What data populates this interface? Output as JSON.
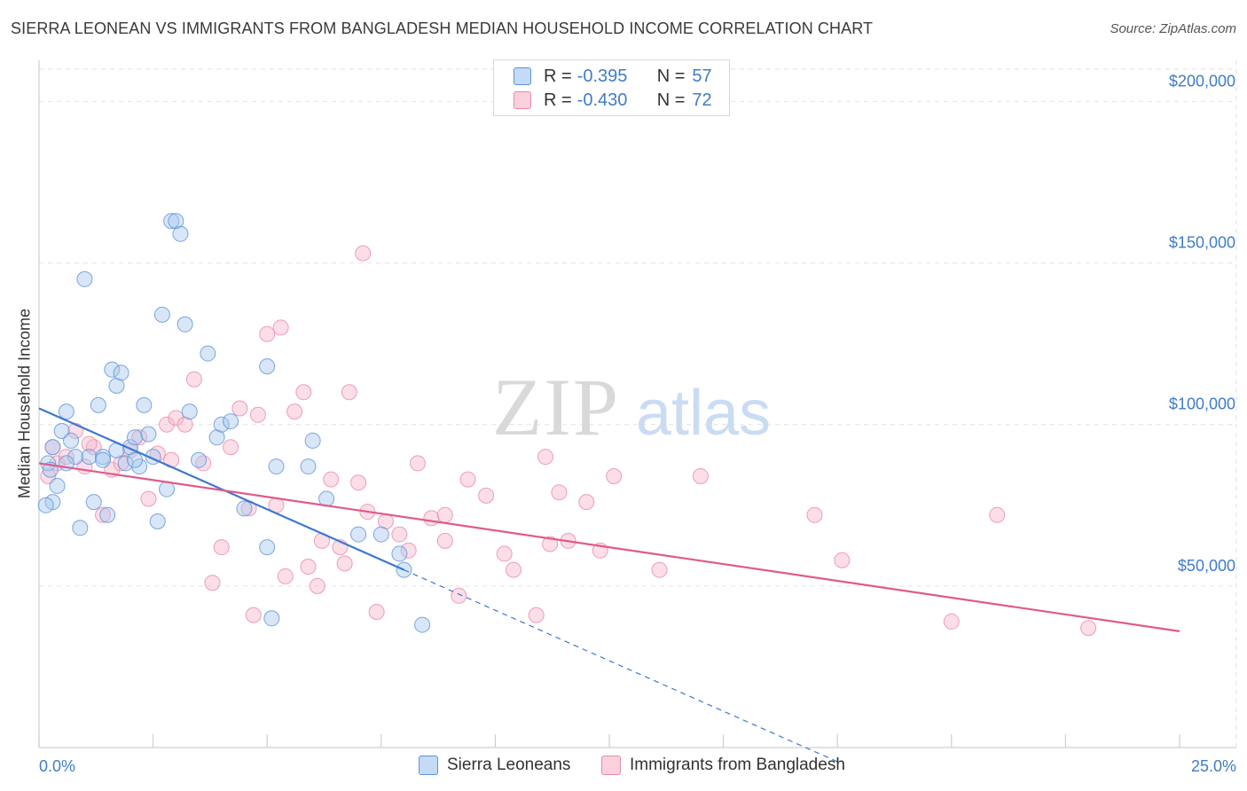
{
  "header": {
    "title": "SIERRA LEONEAN VS IMMIGRANTS FROM BANGLADESH MEDIAN HOUSEHOLD INCOME CORRELATION CHART",
    "source": "Source: ZipAtlas.com"
  },
  "watermark": {
    "zip": "ZIP",
    "atlas": "atlas"
  },
  "legend": {
    "rows": [
      {
        "r_label": "R =",
        "r_value": "-0.395",
        "n_label": "N =",
        "n_value": "57",
        "color": "#a8c8f0"
      },
      {
        "r_label": "R =",
        "r_value": "-0.430",
        "n_label": "N =",
        "n_value": "72",
        "color": "#f6b6ca"
      }
    ]
  },
  "chart_data": {
    "type": "scatter",
    "title": "SIERRA LEONEAN VS IMMIGRANTS FROM BANGLADESH MEDIAN HOUSEHOLD INCOME CORRELATION CHART",
    "xlabel": "",
    "ylabel": "Median Household Income",
    "xlim": [
      0,
      25
    ],
    "ylim": [
      0,
      210000
    ],
    "x_tick_labels": [
      "0.0%",
      "25.0%"
    ],
    "y_tick_values": [
      50000,
      100000,
      150000,
      200000
    ],
    "y_tick_labels": [
      "$50,000",
      "$100,000",
      "$150,000",
      "$200,000"
    ],
    "grid": true,
    "legend_position": "top-center",
    "series": [
      {
        "name": "Sierra Leoneans",
        "color": "#a8c8f0",
        "stroke": "#5b93d8",
        "line_color": "#3b78d0",
        "trend": {
          "x0": 0,
          "y0": 105000,
          "x1": 8.0,
          "y1": 55000,
          "x_dash_end": 17.5
        },
        "points": [
          [
            0.2,
            88000
          ],
          [
            0.3,
            93000
          ],
          [
            0.3,
            76000
          ],
          [
            0.4,
            81000
          ],
          [
            0.5,
            98000
          ],
          [
            0.6,
            104000
          ],
          [
            0.7,
            95000
          ],
          [
            0.8,
            90000
          ],
          [
            0.9,
            68000
          ],
          [
            1.0,
            145000
          ],
          [
            1.1,
            90000
          ],
          [
            1.2,
            76000
          ],
          [
            1.3,
            106000
          ],
          [
            1.4,
            90000
          ],
          [
            1.5,
            72000
          ],
          [
            1.6,
            117000
          ],
          [
            1.7,
            112000
          ],
          [
            1.8,
            116000
          ],
          [
            1.9,
            88000
          ],
          [
            2.0,
            93000
          ],
          [
            2.1,
            96000
          ],
          [
            2.2,
            87000
          ],
          [
            2.3,
            106000
          ],
          [
            2.4,
            97000
          ],
          [
            2.5,
            90000
          ],
          [
            2.6,
            70000
          ],
          [
            2.7,
            134000
          ],
          [
            2.8,
            80000
          ],
          [
            2.9,
            163000
          ],
          [
            3.0,
            163000
          ],
          [
            3.1,
            159000
          ],
          [
            3.2,
            131000
          ],
          [
            3.3,
            104000
          ],
          [
            3.5,
            89000
          ],
          [
            3.7,
            122000
          ],
          [
            3.9,
            96000
          ],
          [
            4.0,
            100000
          ],
          [
            4.2,
            101000
          ],
          [
            4.5,
            74000
          ],
          [
            5.0,
            118000
          ],
          [
            5.2,
            87000
          ],
          [
            5.0,
            62000
          ],
          [
            5.1,
            40000
          ],
          [
            5.9,
            87000
          ],
          [
            6.0,
            95000
          ],
          [
            6.3,
            77000
          ],
          [
            7.0,
            66000
          ],
          [
            7.5,
            66000
          ],
          [
            7.9,
            60000
          ],
          [
            8.0,
            55000
          ],
          [
            8.4,
            38000
          ],
          [
            0.15,
            75000
          ],
          [
            0.6,
            88000
          ],
          [
            1.4,
            89000
          ],
          [
            0.25,
            86000
          ],
          [
            1.7,
            92000
          ],
          [
            2.1,
            89000
          ]
        ]
      },
      {
        "name": "Immigrants from Bangladesh",
        "color": "#f6b6ca",
        "stroke": "#e88aa8",
        "line_color": "#e05a8a",
        "trend": {
          "x0": 0,
          "y0": 88000,
          "x1": 25.0,
          "y1": 36000
        },
        "points": [
          [
            0.2,
            84000
          ],
          [
            0.3,
            93000
          ],
          [
            0.4,
            88000
          ],
          [
            0.6,
            90000
          ],
          [
            0.8,
            98000
          ],
          [
            1.0,
            87000
          ],
          [
            1.2,
            93000
          ],
          [
            1.4,
            72000
          ],
          [
            1.6,
            86000
          ],
          [
            1.8,
            88000
          ],
          [
            2.0,
            92000
          ],
          [
            2.2,
            96000
          ],
          [
            2.4,
            77000
          ],
          [
            2.6,
            91000
          ],
          [
            2.8,
            100000
          ],
          [
            3.0,
            102000
          ],
          [
            3.2,
            100000
          ],
          [
            3.4,
            114000
          ],
          [
            3.6,
            88000
          ],
          [
            3.8,
            51000
          ],
          [
            4.0,
            62000
          ],
          [
            4.2,
            93000
          ],
          [
            4.4,
            105000
          ],
          [
            4.6,
            74000
          ],
          [
            4.7,
            41000
          ],
          [
            4.8,
            103000
          ],
          [
            5.0,
            128000
          ],
          [
            5.2,
            75000
          ],
          [
            5.3,
            130000
          ],
          [
            5.4,
            53000
          ],
          [
            5.6,
            104000
          ],
          [
            5.8,
            110000
          ],
          [
            5.9,
            56000
          ],
          [
            6.1,
            50000
          ],
          [
            6.2,
            64000
          ],
          [
            6.4,
            83000
          ],
          [
            6.6,
            62000
          ],
          [
            6.8,
            110000
          ],
          [
            7.0,
            82000
          ],
          [
            7.2,
            73000
          ],
          [
            7.4,
            42000
          ],
          [
            7.6,
            70000
          ],
          [
            7.9,
            66000
          ],
          [
            8.1,
            61000
          ],
          [
            8.3,
            88000
          ],
          [
            8.6,
            71000
          ],
          [
            8.9,
            64000
          ],
          [
            9.4,
            83000
          ],
          [
            9.8,
            78000
          ],
          [
            10.2,
            60000
          ],
          [
            10.4,
            55000
          ],
          [
            10.9,
            41000
          ],
          [
            11.1,
            90000
          ],
          [
            11.2,
            63000
          ],
          [
            11.4,
            79000
          ],
          [
            11.6,
            64000
          ],
          [
            12.0,
            76000
          ],
          [
            7.1,
            153000
          ],
          [
            9.2,
            47000
          ],
          [
            12.3,
            61000
          ],
          [
            12.6,
            84000
          ],
          [
            13.6,
            55000
          ],
          [
            14.5,
            84000
          ],
          [
            17.0,
            72000
          ],
          [
            17.6,
            58000
          ],
          [
            20.0,
            39000
          ],
          [
            21.0,
            72000
          ],
          [
            23.0,
            37000
          ],
          [
            8.9,
            72000
          ],
          [
            2.9,
            89000
          ],
          [
            1.1,
            94000
          ],
          [
            6.7,
            57000
          ]
        ]
      }
    ]
  },
  "axes": {
    "x_left_label": "0.0%",
    "x_right_label": "25.0%"
  },
  "bottom_legend": [
    {
      "label": "Sierra Leoneans",
      "color": "#a8c8f0"
    },
    {
      "label": "Immigrants from Bangladesh",
      "color": "#f6b6ca"
    }
  ]
}
